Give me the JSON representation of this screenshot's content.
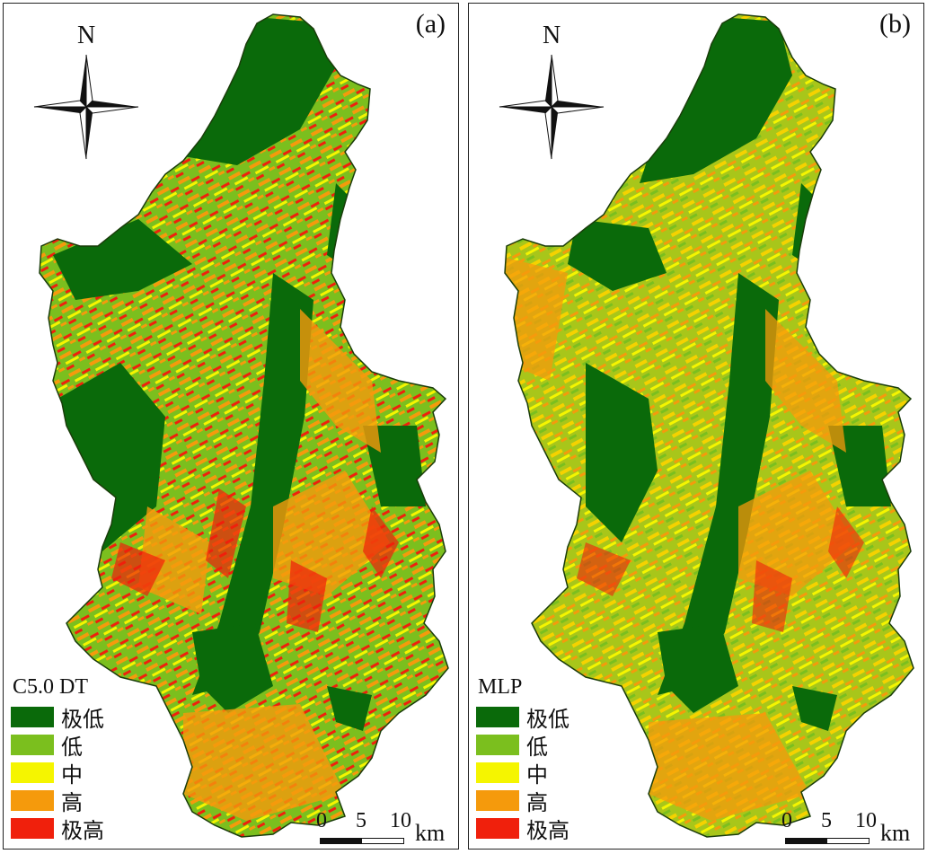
{
  "colors": {
    "very_low": "#0a6a0a",
    "low": "#7bbf1e",
    "moderate": "#f5f500",
    "high": "#f59a0c",
    "very_high": "#f0200c"
  },
  "panels": [
    {
      "label": "(a)",
      "north": "N",
      "model": "C5.0 DT",
      "legend": [
        "极低",
        "低",
        "中",
        "高",
        "极高"
      ],
      "scale": {
        "ticks": [
          "0",
          "5",
          "10"
        ],
        "unit": "km"
      }
    },
    {
      "label": "(b)",
      "north": "N",
      "model": "MLP",
      "legend": [
        "极低",
        "低",
        "中",
        "高",
        "极高"
      ],
      "scale": {
        "ticks": [
          "0",
          "5",
          "10"
        ],
        "unit": "km"
      }
    }
  ]
}
